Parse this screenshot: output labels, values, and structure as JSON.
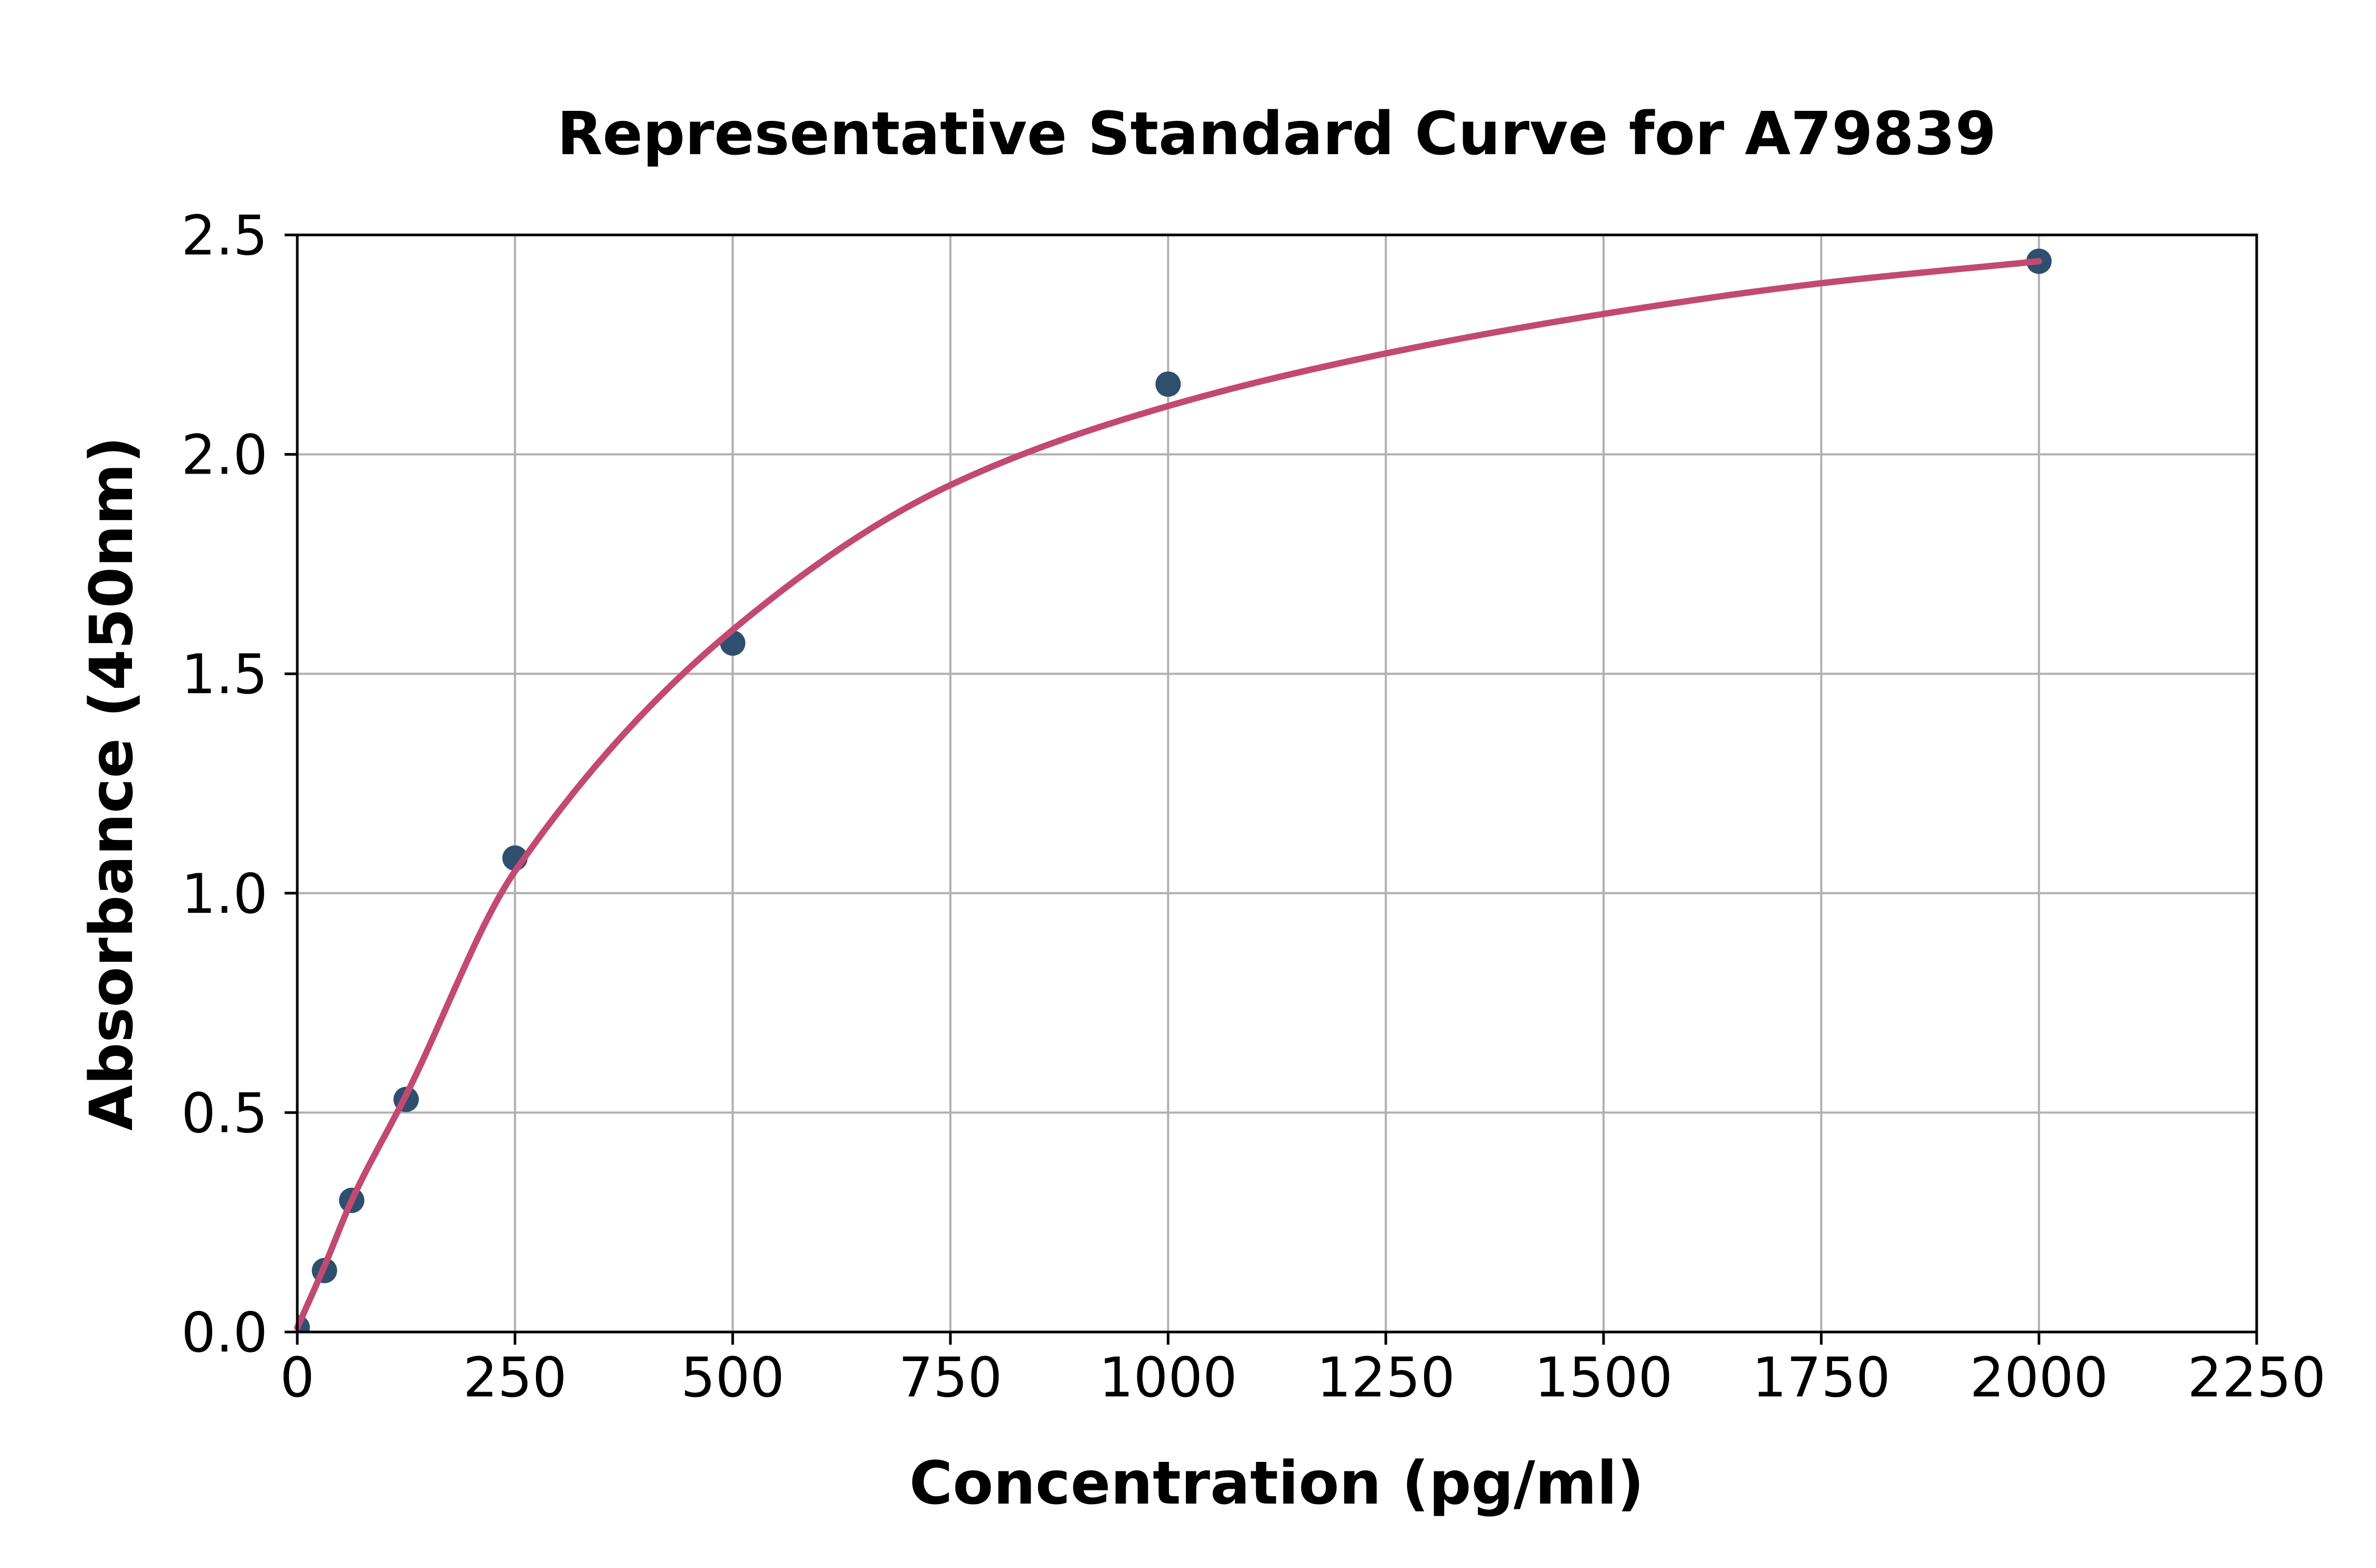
{
  "figure": {
    "background": "#FFFFFF"
  },
  "chart_data": {
    "type": "scatter",
    "title": "Representative Standard Curve for A79839",
    "xlabel": "Concentration (pg/ml)",
    "ylabel": "Absorbance (450nm)",
    "xlim": [
      0,
      2250
    ],
    "ylim": [
      0,
      2.5
    ],
    "x_ticks": [
      0,
      250,
      500,
      750,
      1000,
      1250,
      1500,
      1750,
      2000,
      2250
    ],
    "x_tick_labels": [
      "0",
      "250",
      "500",
      "750",
      "1000",
      "1250",
      "1500",
      "1750",
      "2000",
      "2250"
    ],
    "y_ticks": [
      0,
      0.5,
      1.0,
      1.5,
      2.0,
      2.5
    ],
    "y_tick_labels": [
      "0.0",
      "0.5",
      "1.0",
      "1.5",
      "2.0",
      "2.5"
    ],
    "grid": true,
    "legend": "none",
    "points": [
      {
        "x": 0,
        "y": 0.01
      },
      {
        "x": 31.25,
        "y": 0.14
      },
      {
        "x": 62.5,
        "y": 0.3
      },
      {
        "x": 125,
        "y": 0.53
      },
      {
        "x": 250,
        "y": 1.08
      },
      {
        "x": 500,
        "y": 1.57
      },
      {
        "x": 1000,
        "y": 2.16
      },
      {
        "x": 2000,
        "y": 2.44
      }
    ],
    "fit_curve": {
      "description": "4-parameter-logistic fit line drawn from x=0 to x=2000",
      "samples": [
        {
          "x": 0,
          "y": 0.01
        },
        {
          "x": 31.25,
          "y": 0.15
        },
        {
          "x": 62.5,
          "y": 0.3
        },
        {
          "x": 125,
          "y": 0.54
        },
        {
          "x": 250,
          "y": 1.05
        },
        {
          "x": 500,
          "y": 1.6
        },
        {
          "x": 750,
          "y": 1.93
        },
        {
          "x": 1000,
          "y": 2.11
        },
        {
          "x": 1250,
          "y": 2.23
        },
        {
          "x": 1500,
          "y": 2.32
        },
        {
          "x": 1750,
          "y": 2.39
        },
        {
          "x": 2000,
          "y": 2.44
        }
      ]
    },
    "colors": {
      "marker": "#2F4F6E",
      "curve": "#C24A72",
      "grid": "#B0B0B0",
      "axis": "#000000",
      "background": "#FFFFFF"
    },
    "marker": {
      "shape": "circle",
      "radius_px": 24
    }
  }
}
